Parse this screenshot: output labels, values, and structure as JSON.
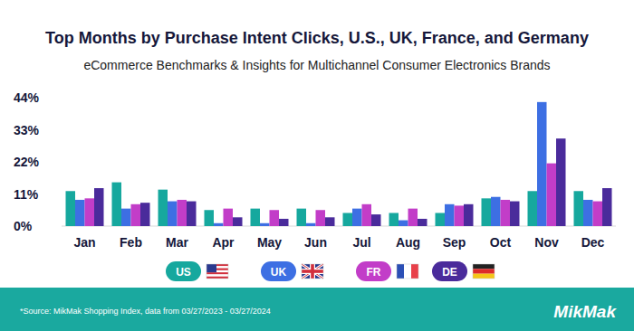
{
  "chart_data": {
    "type": "bar",
    "title": "Top Months by Purchase Intent Clicks, U.S., UK, France, and Germany",
    "subtitle": "eCommerce Benchmarks & Insights for Multichannel Consumer Electronics Brands",
    "categories": [
      "Jan",
      "Feb",
      "Mar",
      "Apr",
      "May",
      "Jun",
      "Jul",
      "Aug",
      "Sep",
      "Oct",
      "Nov",
      "Dec"
    ],
    "series": [
      {
        "name": "US",
        "color": "#16a89e",
        "values": [
          12,
          15,
          12.5,
          5.5,
          6,
          6,
          4.5,
          4.5,
          4.5,
          9.5,
          12,
          12
        ]
      },
      {
        "name": "UK",
        "color": "#3d6fe3",
        "values": [
          9,
          6,
          8.5,
          1,
          1,
          1,
          6,
          2,
          7.5,
          10,
          42.5,
          9
        ]
      },
      {
        "name": "FR",
        "color": "#c23dc8",
        "values": [
          9.5,
          7.5,
          9,
          6,
          5.5,
          5.5,
          7.5,
          6,
          7,
          9,
          21.5,
          8.5
        ]
      },
      {
        "name": "DE",
        "color": "#4a2b9b",
        "values": [
          13,
          8,
          8.5,
          3,
          2.5,
          3,
          4,
          2.5,
          7.5,
          8.5,
          30,
          13
        ]
      }
    ],
    "ylim": [
      0,
      44
    ],
    "yticks": [
      {
        "value": 0,
        "label": "0%"
      },
      {
        "value": 11,
        "label": "11%"
      },
      {
        "value": 22,
        "label": "22%"
      },
      {
        "value": 33,
        "label": "33%"
      },
      {
        "value": 44,
        "label": "44%"
      }
    ],
    "grid": false,
    "legend": "bottom",
    "annotations": [
      "*Source: MikMak Shopping Index, data from  03/27/2023 - 03/27/2024",
      "MikMak"
    ]
  }
}
